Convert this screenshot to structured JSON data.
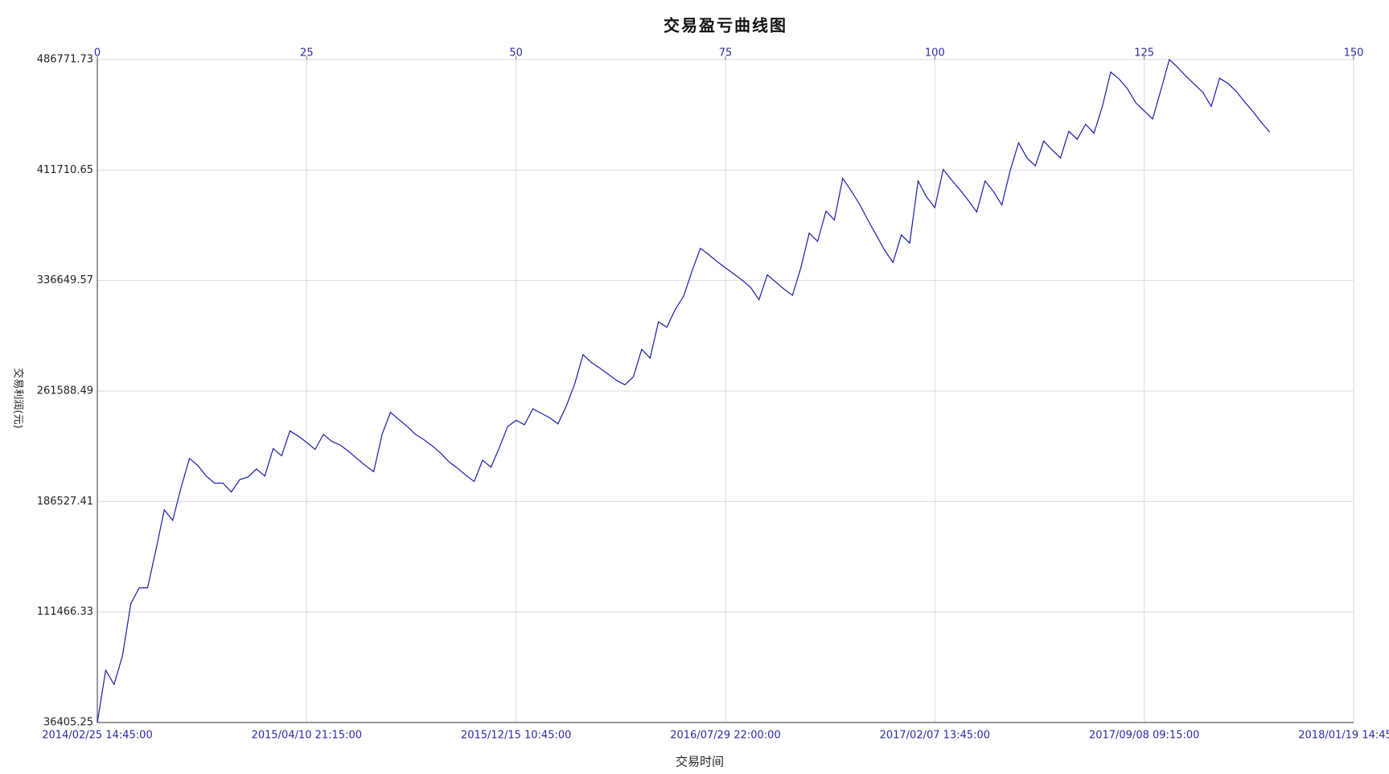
{
  "chart_data": {
    "type": "line",
    "title": "交易盈亏曲线图",
    "xlabel": "交易时间",
    "ylabel": "交易利润(元)",
    "x": [
      0,
      1,
      2,
      3,
      4,
      5,
      6,
      7,
      8,
      9,
      10,
      11,
      12,
      13,
      14,
      15,
      16,
      17,
      18,
      19,
      20,
      21,
      22,
      23,
      24,
      25,
      26,
      27,
      28,
      29,
      30,
      31,
      32,
      33,
      34,
      35,
      36,
      37,
      38,
      39,
      40,
      41,
      42,
      43,
      44,
      45,
      46,
      47,
      48,
      49,
      50,
      51,
      52,
      53,
      54,
      55,
      56,
      57,
      58,
      59,
      60,
      61,
      62,
      63,
      64,
      65,
      66,
      67,
      68,
      69,
      70,
      71,
      72,
      73,
      74,
      75,
      76,
      77,
      78,
      79,
      80,
      81,
      82,
      83,
      84,
      85,
      86,
      87,
      88,
      89,
      90,
      91,
      92,
      93,
      94,
      95,
      96,
      97,
      98,
      99,
      100,
      101,
      102,
      103,
      104,
      105,
      106,
      107,
      108,
      109,
      110,
      111,
      112,
      113,
      114,
      115,
      116,
      117,
      118,
      119,
      120,
      121,
      122,
      123,
      124,
      125,
      126,
      127,
      128,
      129,
      130,
      131,
      132,
      133,
      134,
      135,
      136,
      137,
      138,
      139,
      140
    ],
    "series": [
      {
        "name": "交易利润",
        "color": "#1c1caa",
        "values": [
          36405.25,
          71900,
          62300,
          81600,
          117100,
          127900,
          127900,
          153800,
          180900,
          173700,
          196000,
          215800,
          211000,
          203800,
          199000,
          199000,
          193000,
          201400,
          203200,
          208600,
          203800,
          222500,
          217600,
          234500,
          230900,
          226700,
          221900,
          232100,
          227300,
          224900,
          220600,
          215800,
          211000,
          206800,
          232100,
          247100,
          242300,
          237500,
          232100,
          228500,
          224300,
          219400,
          213400,
          209200,
          204400,
          200200,
          214600,
          209800,
          223100,
          237500,
          241700,
          238700,
          249500,
          246500,
          243500,
          239300,
          251400,
          266400,
          286300,
          280900,
          277200,
          273000,
          268800,
          265800,
          271200,
          289900,
          283900,
          308600,
          304900,
          317000,
          326000,
          342900,
          358500,
          354300,
          349500,
          345300,
          341100,
          336900,
          332000,
          323600,
          340500,
          335600,
          330800,
          326600,
          345300,
          368800,
          363300,
          383800,
          377800,
          406100,
          397700,
          388600,
          377800,
          367600,
          357300,
          348900,
          367600,
          362100,
          404300,
          393500,
          386200,
          412100,
          404900,
          398300,
          391000,
          383200,
          404300,
          397100,
          388000,
          411500,
          430200,
          419900,
          414500,
          431400,
          425400,
          419900,
          438000,
          432600,
          442800,
          436800,
          454900,
          478300,
          473500,
          466900,
          457300,
          451900,
          446400,
          466300,
          486700,
          481400,
          475300,
          469900,
          464500,
          454900,
          474100,
          470500,
          465100,
          457900,
          451300,
          444000,
          437400
        ]
      }
    ],
    "xlim": [
      0,
      150
    ],
    "xticks": [
      {
        "value": 0,
        "label": "2014/02/25 14:45:00"
      },
      {
        "value": 25,
        "label": "2015/04/10 21:15:00"
      },
      {
        "value": 50,
        "label": "2015/12/15 10:45:00"
      },
      {
        "value": 75,
        "label": "2016/07/29 22:00:00"
      },
      {
        "value": 100,
        "label": "2017/02/07 13:45:00"
      },
      {
        "value": 125,
        "label": "2017/09/08 09:15:00"
      },
      {
        "value": 150,
        "label": "2018/01/19 14:45:00"
      }
    ],
    "x2ticks": [
      0,
      25,
      50,
      75,
      100,
      125,
      150
    ],
    "ylim": [
      36405.25,
      486771.73
    ],
    "yticks": [
      36405.25,
      111466.33,
      186527.41,
      261588.49,
      336649.57,
      411710.65,
      486771.73
    ],
    "grid": true
  }
}
